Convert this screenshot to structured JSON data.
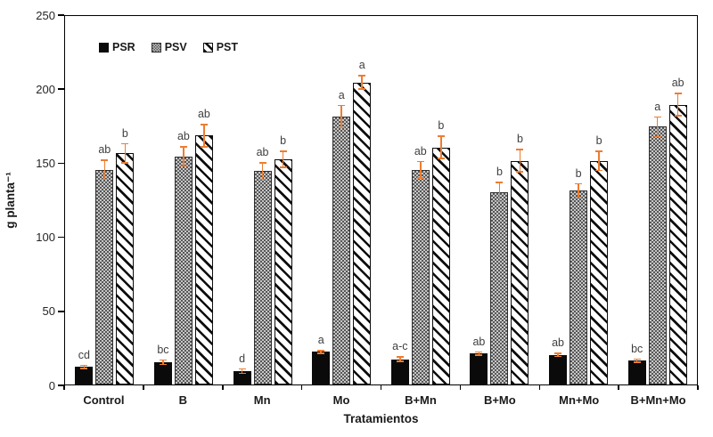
{
  "chart_data": {
    "type": "bar",
    "title": "",
    "xlabel": "Tratamientos",
    "ylabel": "g planta⁻¹",
    "ylim": [
      0,
      250
    ],
    "yticks": [
      0,
      50,
      100,
      150,
      200,
      250
    ],
    "grid": false,
    "legend_position": "top-left-inside",
    "legend_labels": [
      "PSR",
      "PSV",
      "PST"
    ],
    "categories": [
      "Control",
      "B",
      "Mn",
      "Mo",
      "B+Mn",
      "B+Mo",
      "Mn+Mo",
      "B+Mn+Mo"
    ],
    "series": [
      {
        "name": "PSR",
        "pattern": "solid-black",
        "values": [
          12,
          15,
          9,
          22,
          17,
          21,
          20,
          16
        ],
        "errors": [
          1.5,
          2,
          2,
          1.5,
          2,
          1.5,
          1.5,
          1.5
        ],
        "letters": [
          "cd",
          "bc",
          "d",
          "a",
          "a-c",
          "ab",
          "ab",
          "bc"
        ]
      },
      {
        "name": "PSV",
        "pattern": "gray-dots",
        "values": [
          145,
          154,
          144,
          181,
          145,
          130,
          131,
          174
        ],
        "errors": [
          7,
          7,
          6,
          8,
          6,
          7,
          5,
          7
        ],
        "letters": [
          "ab",
          "ab",
          "ab",
          "a",
          "ab",
          "b",
          "b",
          "a"
        ]
      },
      {
        "name": "PST",
        "pattern": "diagonal-hatch",
        "values": [
          156,
          168,
          152,
          204,
          160,
          151,
          151,
          189
        ],
        "errors": [
          7,
          8,
          6,
          5,
          8,
          8,
          7,
          8
        ],
        "letters": [
          "b",
          "ab",
          "b",
          "a",
          "b",
          "b",
          "b",
          "ab"
        ]
      }
    ],
    "colors": {
      "bar_black": "#0a0a0a",
      "error_bar": "#ED7D31",
      "letters": "#3f3f3f",
      "axis": "#000000"
    }
  }
}
